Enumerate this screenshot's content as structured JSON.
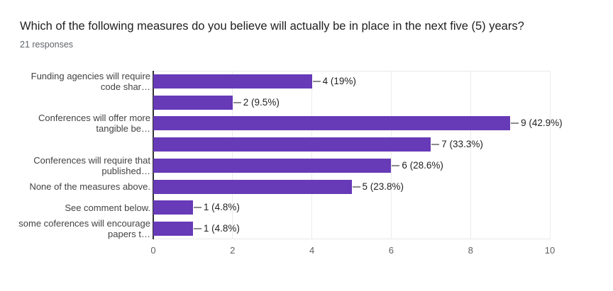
{
  "chart_data": {
    "type": "bar",
    "orientation": "horizontal",
    "title": "Which of the following measures do you believe will actually be in place in the next five (5) years?",
    "subtitle": "21 responses",
    "categories": [
      {
        "lines": [
          "Funding agencies will require",
          "code shar…"
        ]
      },
      {
        "lines": []
      },
      {
        "lines": [
          "Conferences will offer more",
          "tangible be…"
        ]
      },
      {
        "lines": []
      },
      {
        "lines": [
          "Conferences will require that",
          "published…"
        ]
      },
      {
        "lines": [
          "None of the measures above."
        ]
      },
      {
        "lines": [
          "See comment below."
        ]
      },
      {
        "lines": [
          "some coferences will encourage",
          "papers t…"
        ]
      }
    ],
    "values": [
      4,
      2,
      9,
      7,
      6,
      5,
      1,
      1
    ],
    "value_labels": [
      "4 (19%)",
      "2 (9.5%)",
      "9 (42.9%)",
      "7 (33.3%)",
      "6 (28.6%)",
      "5 (23.8%)",
      "1 (4.8%)",
      "1 (4.8%)"
    ],
    "xlim": [
      0,
      10
    ],
    "xticks": [
      0,
      2,
      4,
      6,
      8,
      10
    ],
    "grid": true,
    "legend": "none",
    "bar_color": "#673ab7"
  }
}
